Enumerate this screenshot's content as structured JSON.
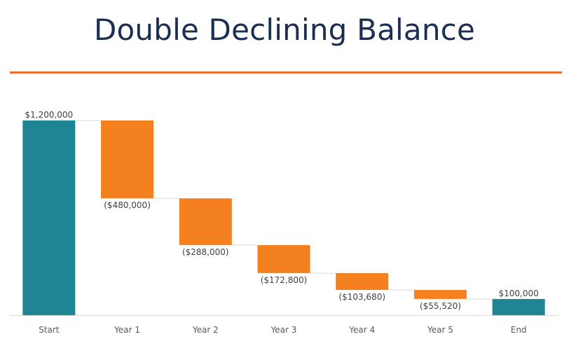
{
  "chart_data": {
    "type": "waterfall",
    "title": "Double Declining Balance",
    "xlabel": "",
    "ylabel": "",
    "categories": [
      "Start",
      "Year 1",
      "Year 2",
      "Year 3",
      "Year 4",
      "Year 5",
      "End"
    ],
    "values": [
      1200000,
      -480000,
      -288000,
      -172800,
      -103680,
      -55520,
      100000
    ],
    "kinds": [
      "total",
      "change",
      "change",
      "change",
      "change",
      "change",
      "total"
    ],
    "data_labels": [
      "$1,200,000",
      "($480,000)",
      "($288,000)",
      "($172,800)",
      "($103,680)",
      "($55,520)",
      "$100,000"
    ],
    "ylim": [
      0,
      1200000
    ],
    "grid": false,
    "legend": "none",
    "colors": {
      "total": "#1f8493",
      "decrease": "#f5801f",
      "connector": "#d9d9d9",
      "axis": "#d9d9d9",
      "title": "#1b2f52",
      "title_rule": "#e8702a"
    }
  }
}
